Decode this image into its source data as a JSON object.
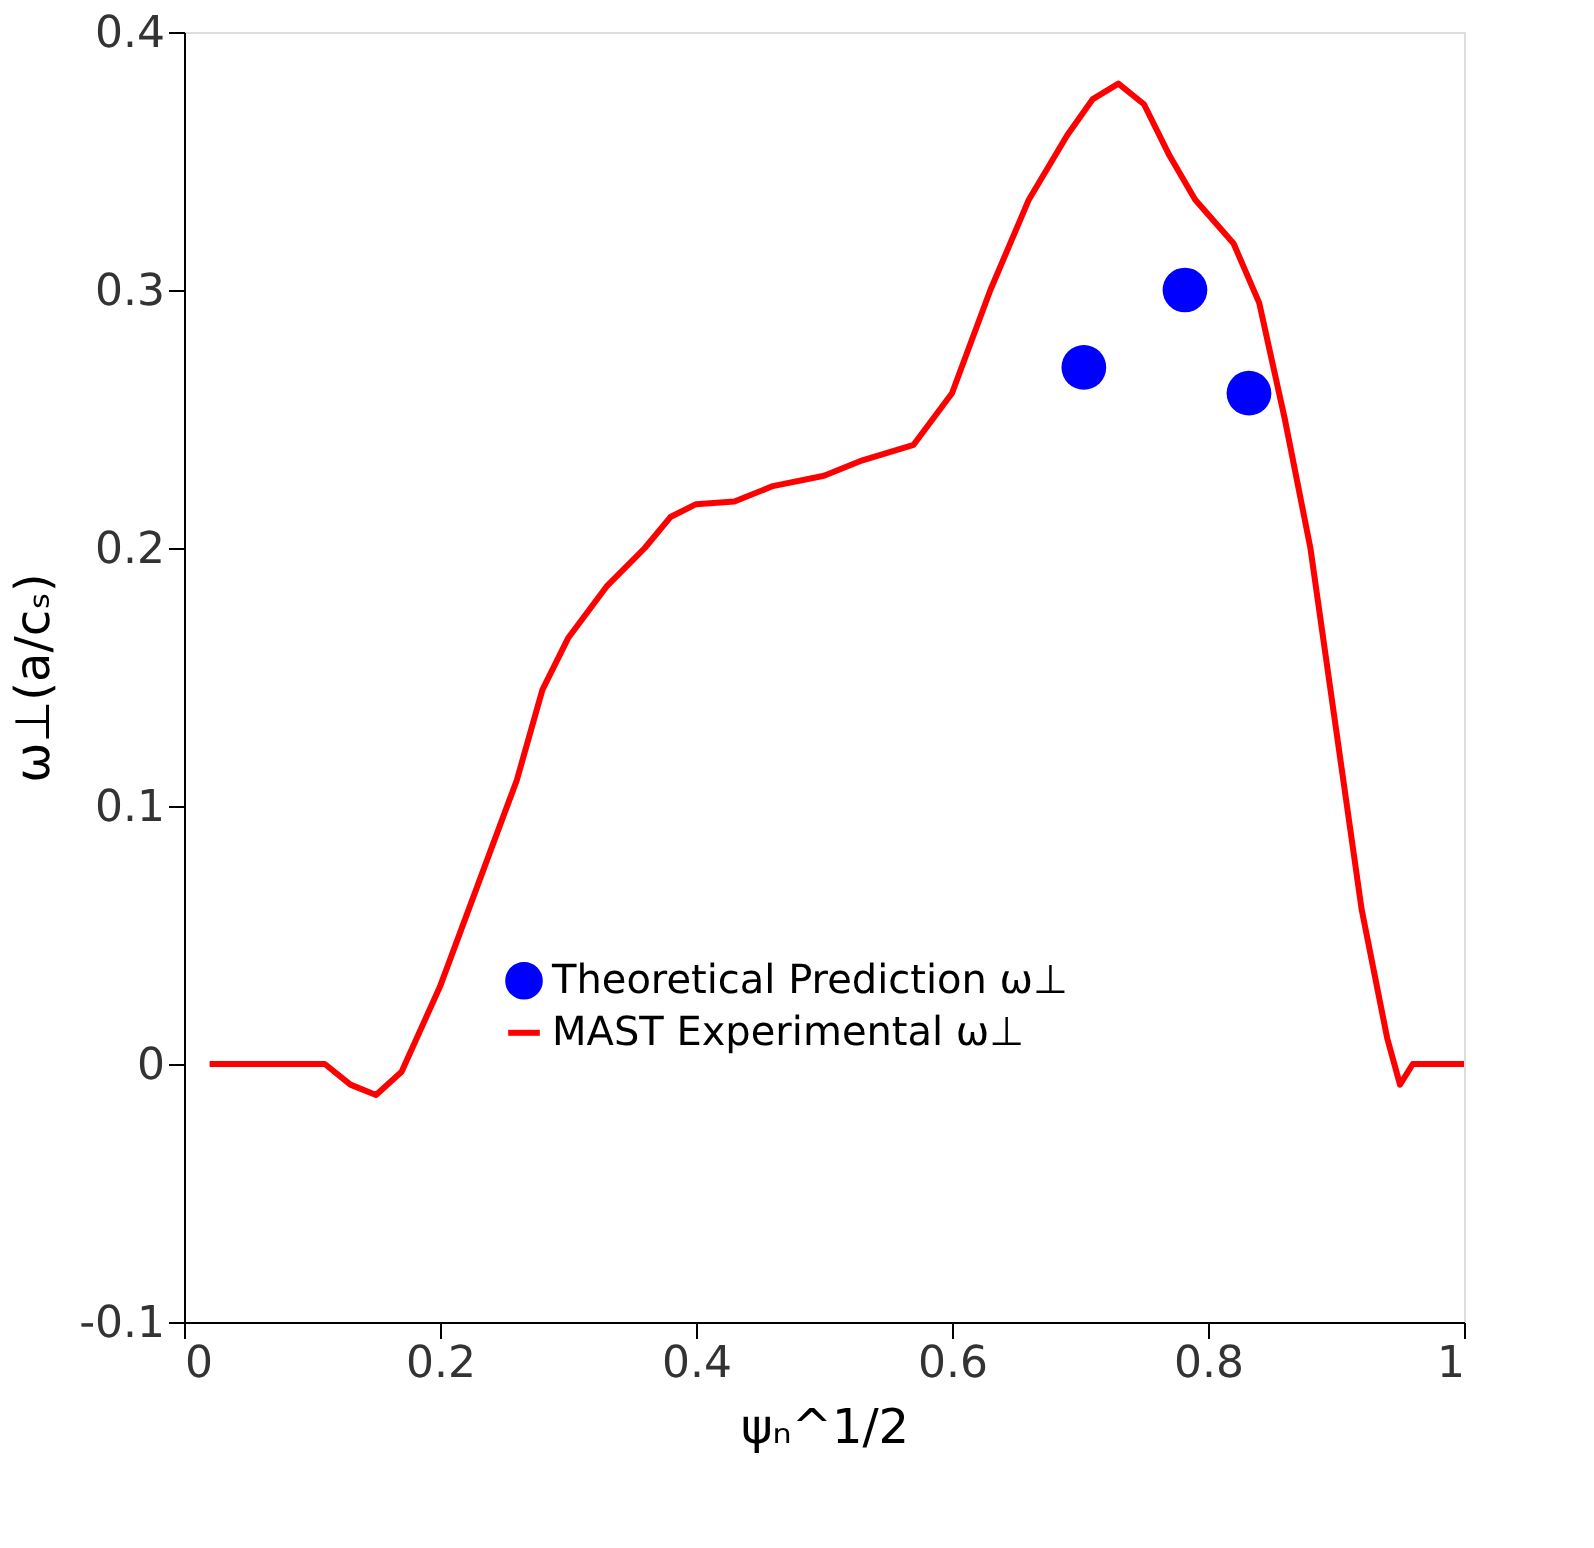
{
  "chart_data": {
    "type": "line",
    "xlabel": "ψₙ^1/2",
    "ylabel": "ω⊥(a/cₛ)",
    "xlim": [
      0,
      1
    ],
    "xticks": [
      0,
      0.2,
      0.4,
      0.6,
      0.8,
      1
    ],
    "ylim": [
      -0.1,
      0.4
    ],
    "yticks": [
      -0.1,
      0,
      0.1,
      0.2,
      0.3,
      0.4
    ],
    "grid": false,
    "legend": "bottom",
    "series": [
      {
        "name": "Theoretical Prediction ω⊥",
        "type": "scatter",
        "marker": "circle",
        "color": "#0000ff",
        "x": [
          0.703,
          0.782,
          0.832
        ],
        "values": [
          0.27,
          0.3,
          0.26
        ]
      },
      {
        "name": "MAST Experimental ω⊥",
        "color": "#ff0000",
        "x": [
          0.02,
          0.11,
          0.13,
          0.15,
          0.17,
          0.2,
          0.23,
          0.26,
          0.28,
          0.3,
          0.33,
          0.36,
          0.38,
          0.4,
          0.43,
          0.46,
          0.5,
          0.53,
          0.57,
          0.6,
          0.63,
          0.66,
          0.69,
          0.71,
          0.73,
          0.75,
          0.77,
          0.79,
          0.82,
          0.84,
          0.86,
          0.88,
          0.9,
          0.92,
          0.94,
          0.95,
          0.96,
          1.0
        ],
        "values": [
          0,
          0,
          -0.008,
          -0.012,
          -0.003,
          0.03,
          0.07,
          0.11,
          0.145,
          0.165,
          0.185,
          0.2,
          0.212,
          0.217,
          0.218,
          0.224,
          0.228,
          0.234,
          0.24,
          0.26,
          0.3,
          0.335,
          0.36,
          0.374,
          0.38,
          0.372,
          0.352,
          0.335,
          0.318,
          0.295,
          0.25,
          0.2,
          0.13,
          0.06,
          0.01,
          -0.008,
          0,
          0
        ]
      }
    ]
  }
}
